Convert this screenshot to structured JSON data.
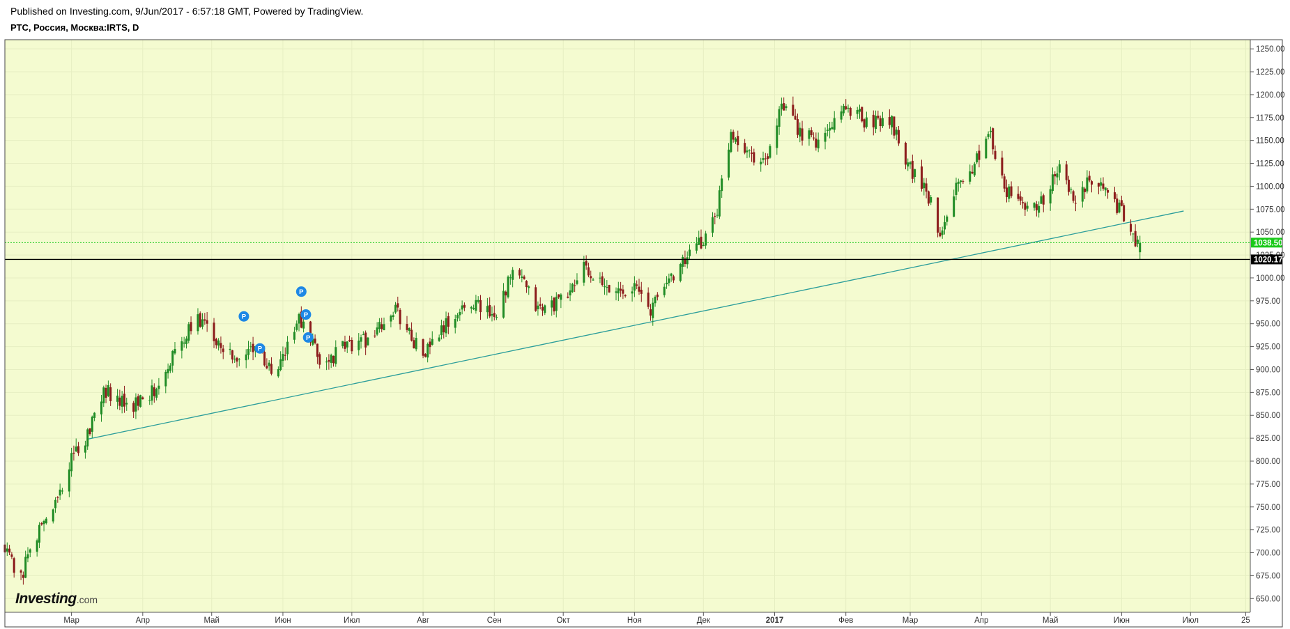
{
  "header": {
    "published": "Published on Investing.com, 9/Jun/2017 - 6:57:18 GMT, Powered by TradingView.",
    "title": "РТС, Россия, Москва:IRTS, D"
  },
  "logo": {
    "main": "Investing",
    "domain": ".com"
  },
  "colors": {
    "background": "#f4fbd0",
    "up": "#1f8b24",
    "down": "#8b1a1a",
    "trendline": "#2a9d9a",
    "last_price": "#19c919",
    "ref_line": "#000000",
    "marker": "#1e88e5"
  },
  "chart_data": {
    "type": "candlestick",
    "symbol": "IRTS",
    "interval": "D",
    "y_axis": {
      "range": [
        635,
        1260
      ],
      "ticks": [
        "650.00",
        "675.00",
        "700.00",
        "725.00",
        "750.00",
        "775.00",
        "800.00",
        "825.00",
        "850.00",
        "875.00",
        "900.00",
        "925.00",
        "950.00",
        "975.00",
        "1000.00",
        "1025.00",
        "1050.00",
        "1075.00",
        "1100.00",
        "1125.00",
        "1150.00",
        "1175.00",
        "1200.00",
        "1225.00",
        "1250.00"
      ]
    },
    "x_axis": {
      "labels": [
        {
          "text": "Мар",
          "date": "2016-03-01",
          "bold": false
        },
        {
          "text": "Апр",
          "date": "2016-04-01",
          "bold": false
        },
        {
          "text": "Май",
          "date": "2016-05-01",
          "bold": false
        },
        {
          "text": "Июн",
          "date": "2016-06-01",
          "bold": false
        },
        {
          "text": "Июл",
          "date": "2016-07-01",
          "bold": false
        },
        {
          "text": "Авг",
          "date": "2016-08-01",
          "bold": false
        },
        {
          "text": "Сен",
          "date": "2016-09-01",
          "bold": false
        },
        {
          "text": "Окт",
          "date": "2016-10-01",
          "bold": false
        },
        {
          "text": "Ноя",
          "date": "2016-11-01",
          "bold": false
        },
        {
          "text": "Дек",
          "date": "2016-12-01",
          "bold": false
        },
        {
          "text": "2017",
          "date": "2017-01-01",
          "bold": true
        },
        {
          "text": "Фев",
          "date": "2017-02-01",
          "bold": false
        },
        {
          "text": "Мар",
          "date": "2017-03-01",
          "bold": false
        },
        {
          "text": "Апр",
          "date": "2017-04-01",
          "bold": false
        },
        {
          "text": "Май",
          "date": "2017-05-01",
          "bold": false
        },
        {
          "text": "Июн",
          "date": "2017-06-01",
          "bold": false
        },
        {
          "text": "Июл",
          "date": "2017-07-01",
          "bold": false
        },
        {
          "text": "25",
          "date": "2017-07-25",
          "bold": false
        }
      ],
      "range": [
        "2016-02-01",
        "2017-07-27"
      ]
    },
    "last_price": {
      "value": 1038.5,
      "label": "1038.50"
    },
    "reference_line": {
      "value": 1020.17,
      "label": "1020.17"
    },
    "trendline": {
      "points": [
        {
          "x": "2016-03-08",
          "y": 824
        },
        {
          "x": "2017-06-28",
          "y": 1073
        }
      ]
    },
    "key_closes": [
      {
        "x": "2016-02-01",
        "y": 700
      },
      {
        "x": "2016-02-08",
        "y": 675
      },
      {
        "x": "2016-02-16",
        "y": 725
      },
      {
        "x": "2016-02-23",
        "y": 755
      },
      {
        "x": "2016-03-01",
        "y": 800
      },
      {
        "x": "2016-03-08",
        "y": 830
      },
      {
        "x": "2016-03-15",
        "y": 880
      },
      {
        "x": "2016-03-25",
        "y": 858
      },
      {
        "x": "2016-04-05",
        "y": 875
      },
      {
        "x": "2016-04-15",
        "y": 920
      },
      {
        "x": "2016-04-25",
        "y": 955
      },
      {
        "x": "2016-05-05",
        "y": 930
      },
      {
        "x": "2016-05-12",
        "y": 905
      },
      {
        "x": "2016-05-20",
        "y": 930
      },
      {
        "x": "2016-05-28",
        "y": 890
      },
      {
        "x": "2016-06-08",
        "y": 955
      },
      {
        "x": "2016-06-18",
        "y": 905
      },
      {
        "x": "2016-06-28",
        "y": 925
      },
      {
        "x": "2016-07-10",
        "y": 935
      },
      {
        "x": "2016-07-20",
        "y": 965
      },
      {
        "x": "2016-08-01",
        "y": 915
      },
      {
        "x": "2016-08-10",
        "y": 945
      },
      {
        "x": "2016-08-22",
        "y": 975
      },
      {
        "x": "2016-09-01",
        "y": 960
      },
      {
        "x": "2016-09-10",
        "y": 1010
      },
      {
        "x": "2016-09-20",
        "y": 965
      },
      {
        "x": "2016-10-01",
        "y": 975
      },
      {
        "x": "2016-10-10",
        "y": 1010
      },
      {
        "x": "2016-10-20",
        "y": 985
      },
      {
        "x": "2016-11-01",
        "y": 990
      },
      {
        "x": "2016-11-08",
        "y": 965
      },
      {
        "x": "2016-11-16",
        "y": 1000
      },
      {
        "x": "2016-11-25",
        "y": 1025
      },
      {
        "x": "2016-12-01",
        "y": 1040
      },
      {
        "x": "2016-12-07",
        "y": 1075
      },
      {
        "x": "2016-12-13",
        "y": 1160
      },
      {
        "x": "2016-12-20",
        "y": 1140
      },
      {
        "x": "2016-12-28",
        "y": 1125
      },
      {
        "x": "2017-01-04",
        "y": 1185
      },
      {
        "x": "2017-01-12",
        "y": 1160
      },
      {
        "x": "2017-01-20",
        "y": 1145
      },
      {
        "x": "2017-02-01",
        "y": 1190
      },
      {
        "x": "2017-02-10",
        "y": 1170
      },
      {
        "x": "2017-02-20",
        "y": 1175
      },
      {
        "x": "2017-03-01",
        "y": 1120
      },
      {
        "x": "2017-03-08",
        "y": 1095
      },
      {
        "x": "2017-03-14",
        "y": 1050
      },
      {
        "x": "2017-03-20",
        "y": 1095
      },
      {
        "x": "2017-03-30",
        "y": 1130
      },
      {
        "x": "2017-04-05",
        "y": 1155
      },
      {
        "x": "2017-04-12",
        "y": 1095
      },
      {
        "x": "2017-04-20",
        "y": 1075
      },
      {
        "x": "2017-04-28",
        "y": 1085
      },
      {
        "x": "2017-05-05",
        "y": 1120
      },
      {
        "x": "2017-05-12",
        "y": 1080
      },
      {
        "x": "2017-05-20",
        "y": 1115
      },
      {
        "x": "2017-05-26",
        "y": 1095
      },
      {
        "x": "2017-06-01",
        "y": 1070
      },
      {
        "x": "2017-06-05",
        "y": 1045
      },
      {
        "x": "2017-06-09",
        "y": 1038
      }
    ],
    "event_markers": [
      {
        "label": "P",
        "x": "2016-05-15",
        "y": 958
      },
      {
        "label": "P",
        "x": "2016-05-22",
        "y": 923
      },
      {
        "label": "P",
        "x": "2016-06-09",
        "y": 985
      },
      {
        "label": "P",
        "x": "2016-06-11",
        "y": 960
      },
      {
        "label": "P",
        "x": "2016-06-12",
        "y": 935
      }
    ]
  }
}
